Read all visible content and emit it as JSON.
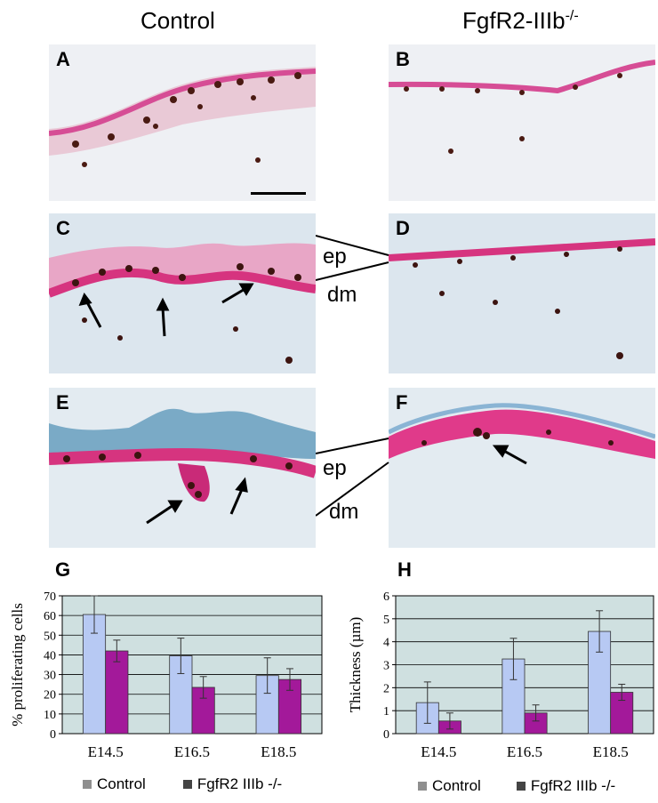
{
  "header": {
    "control": "Control",
    "mutant": "FgfR2-IIIb",
    "mutant_sup": "-/-"
  },
  "panels": [
    "A",
    "B",
    "C",
    "D",
    "E",
    "F"
  ],
  "side_labels": {
    "ep": "ep",
    "dm": "dm"
  },
  "colors": {
    "control": "#b7c9f3",
    "mutant": "#a3199a",
    "plot_bg": "#cfe0e0",
    "legend_control": "#8f8f8f",
    "legend_mutant": "#444444"
  },
  "chart_data": [
    {
      "type": "bar",
      "letter": "G",
      "categories": [
        "E14.5",
        "E16.5",
        "E18.5"
      ],
      "series": [
        {
          "name": "Control",
          "values": [
            60.5,
            39.5,
            29.5
          ],
          "errors": [
            9.5,
            9,
            9
          ]
        },
        {
          "name": "FgfR2 IIIb -/-",
          "values": [
            42,
            23.5,
            27.5
          ],
          "errors": [
            5.5,
            5.5,
            5.5
          ]
        }
      ],
      "ylabel": "% proliferating cells",
      "ylim": [
        0,
        70
      ],
      "yticks": [
        0,
        10,
        20,
        30,
        40,
        50,
        60,
        70
      ],
      "grid": true,
      "legend": "bottom"
    },
    {
      "type": "bar",
      "letter": "H",
      "categories": [
        "E14.5",
        "E16.5",
        "E18.5"
      ],
      "series": [
        {
          "name": "Control",
          "values": [
            1.35,
            3.25,
            4.45
          ],
          "errors": [
            0.9,
            0.9,
            0.9
          ]
        },
        {
          "name": "FgfR2 IIIb -/-",
          "values": [
            0.55,
            0.9,
            1.8
          ],
          "errors": [
            0.35,
            0.35,
            0.35
          ]
        }
      ],
      "ylabel": "Thickness (µm)",
      "ylim": [
        0,
        6
      ],
      "yticks": [
        0,
        1,
        2,
        3,
        4,
        5,
        6
      ],
      "grid": true,
      "legend": "bottom"
    }
  ]
}
